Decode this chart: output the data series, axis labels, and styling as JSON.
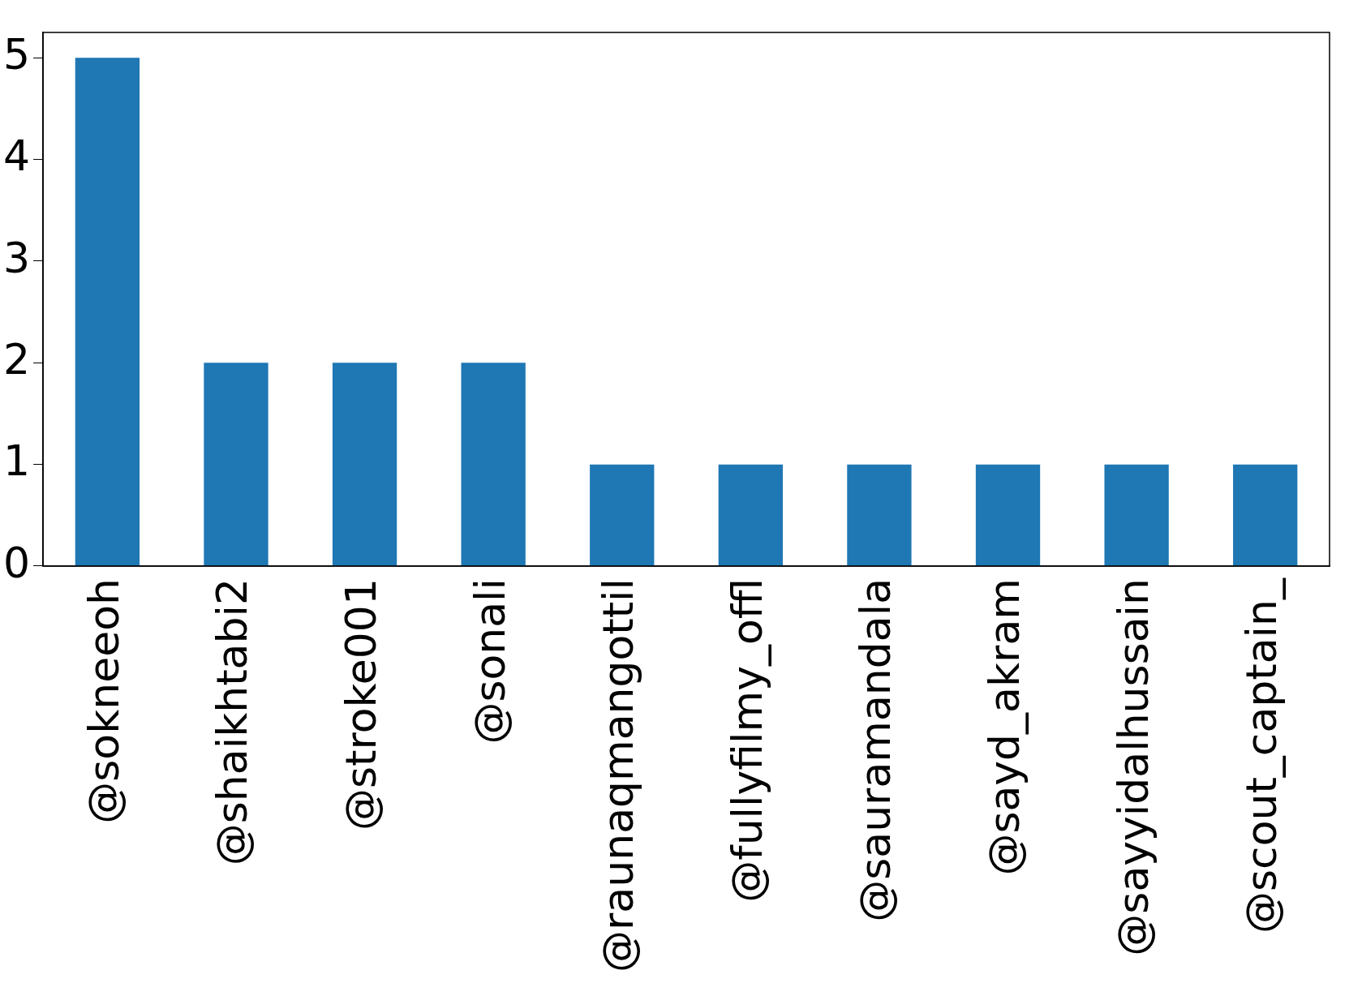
{
  "chart_data": {
    "type": "bar",
    "categories": [
      "@sokneeoh",
      "@shaikhtabi2",
      "@stroke001",
      "@sonali",
      "@raunaqmangottil",
      "@fullyfilmy_offl",
      "@sauramandala",
      "@sayd_akram",
      "@sayyidalhussain",
      "@scout_captain_"
    ],
    "values": [
      5,
      2,
      2,
      2,
      1,
      1,
      1,
      1,
      1,
      1
    ],
    "color": "#1f77b4",
    "ylim": [
      0,
      5.25
    ],
    "yticks": [
      0,
      1,
      2,
      3,
      4,
      5
    ],
    "grid": false,
    "legend": false
  }
}
